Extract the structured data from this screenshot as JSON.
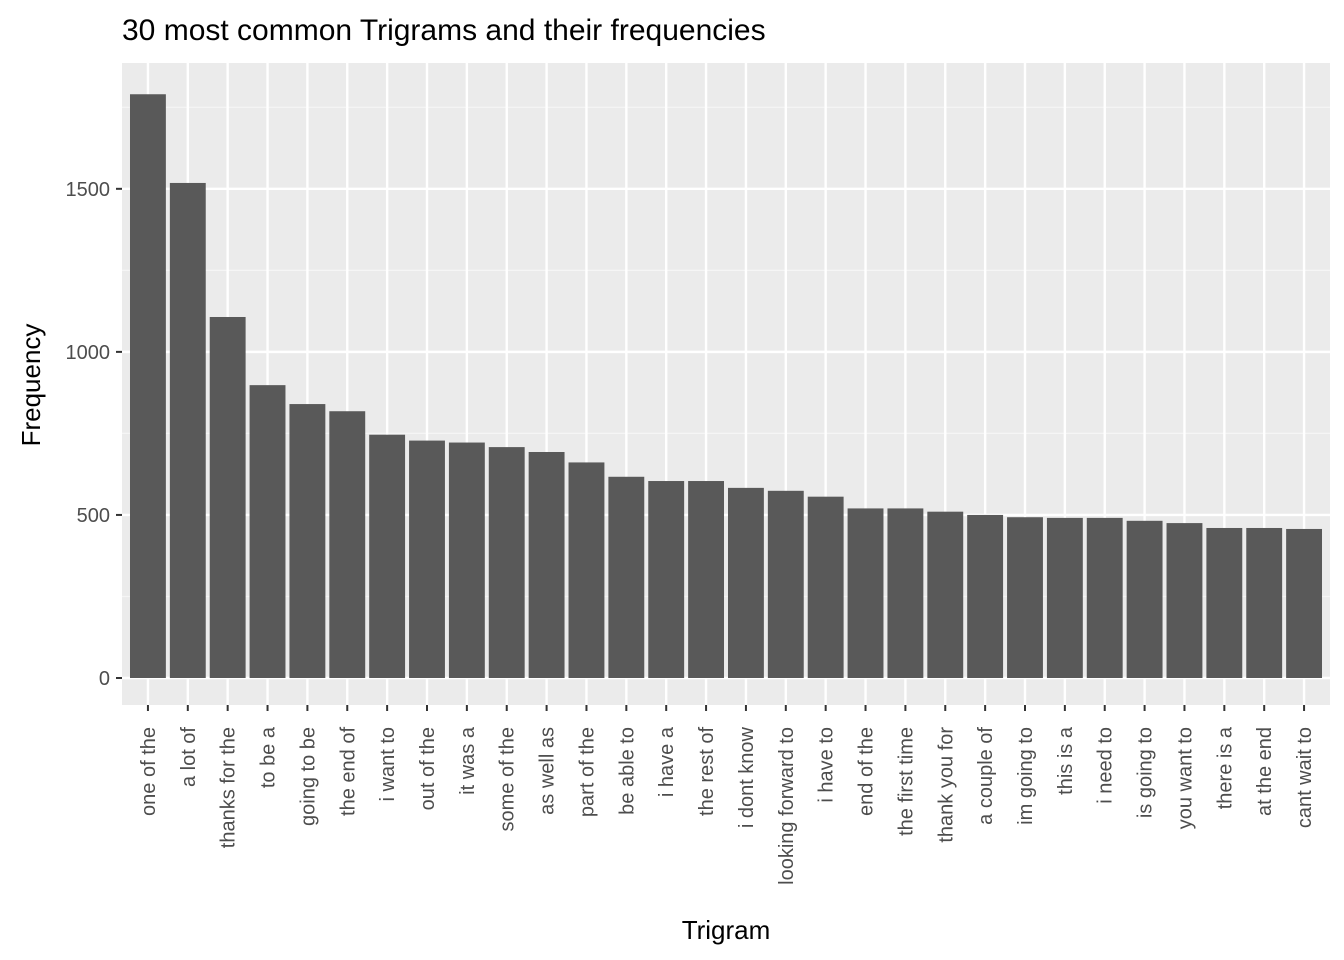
{
  "chart_data": {
    "type": "bar",
    "title": "30 most common Trigrams and their frequencies",
    "xlabel": "Trigram",
    "ylabel": "Frequency",
    "ylim": [
      0,
      1880
    ],
    "yticks": [
      0,
      500,
      1000,
      1500
    ],
    "grid": true,
    "categories": [
      "one of the",
      "a lot of",
      "thanks for the",
      "to be a",
      "going to be",
      "the end of",
      "i want to",
      "out of the",
      "it was a",
      "some of the",
      "as well as",
      "part of the",
      "be able to",
      "i have a",
      "the rest of",
      "i dont know",
      "looking forward to",
      "i have to",
      "end of the",
      "the first time",
      "thank you for",
      "a couple of",
      "im going to",
      "this is a",
      "i need to",
      "is going to",
      "you want to",
      "there is a",
      "at the end",
      "cant wait to"
    ],
    "values": [
      1790,
      1518,
      1107,
      898,
      840,
      818,
      746,
      728,
      722,
      708,
      693,
      661,
      617,
      604,
      604,
      583,
      574,
      556,
      520,
      520,
      510,
      500,
      493,
      491,
      491,
      482,
      475,
      460,
      460,
      457
    ],
    "colors": {
      "panel": "#ebebeb",
      "grid_major": "#ffffff",
      "grid_minor": "#f5f5f5",
      "bar": "#595959",
      "tick": "#333333",
      "tick_label": "#4d4d4d"
    }
  }
}
